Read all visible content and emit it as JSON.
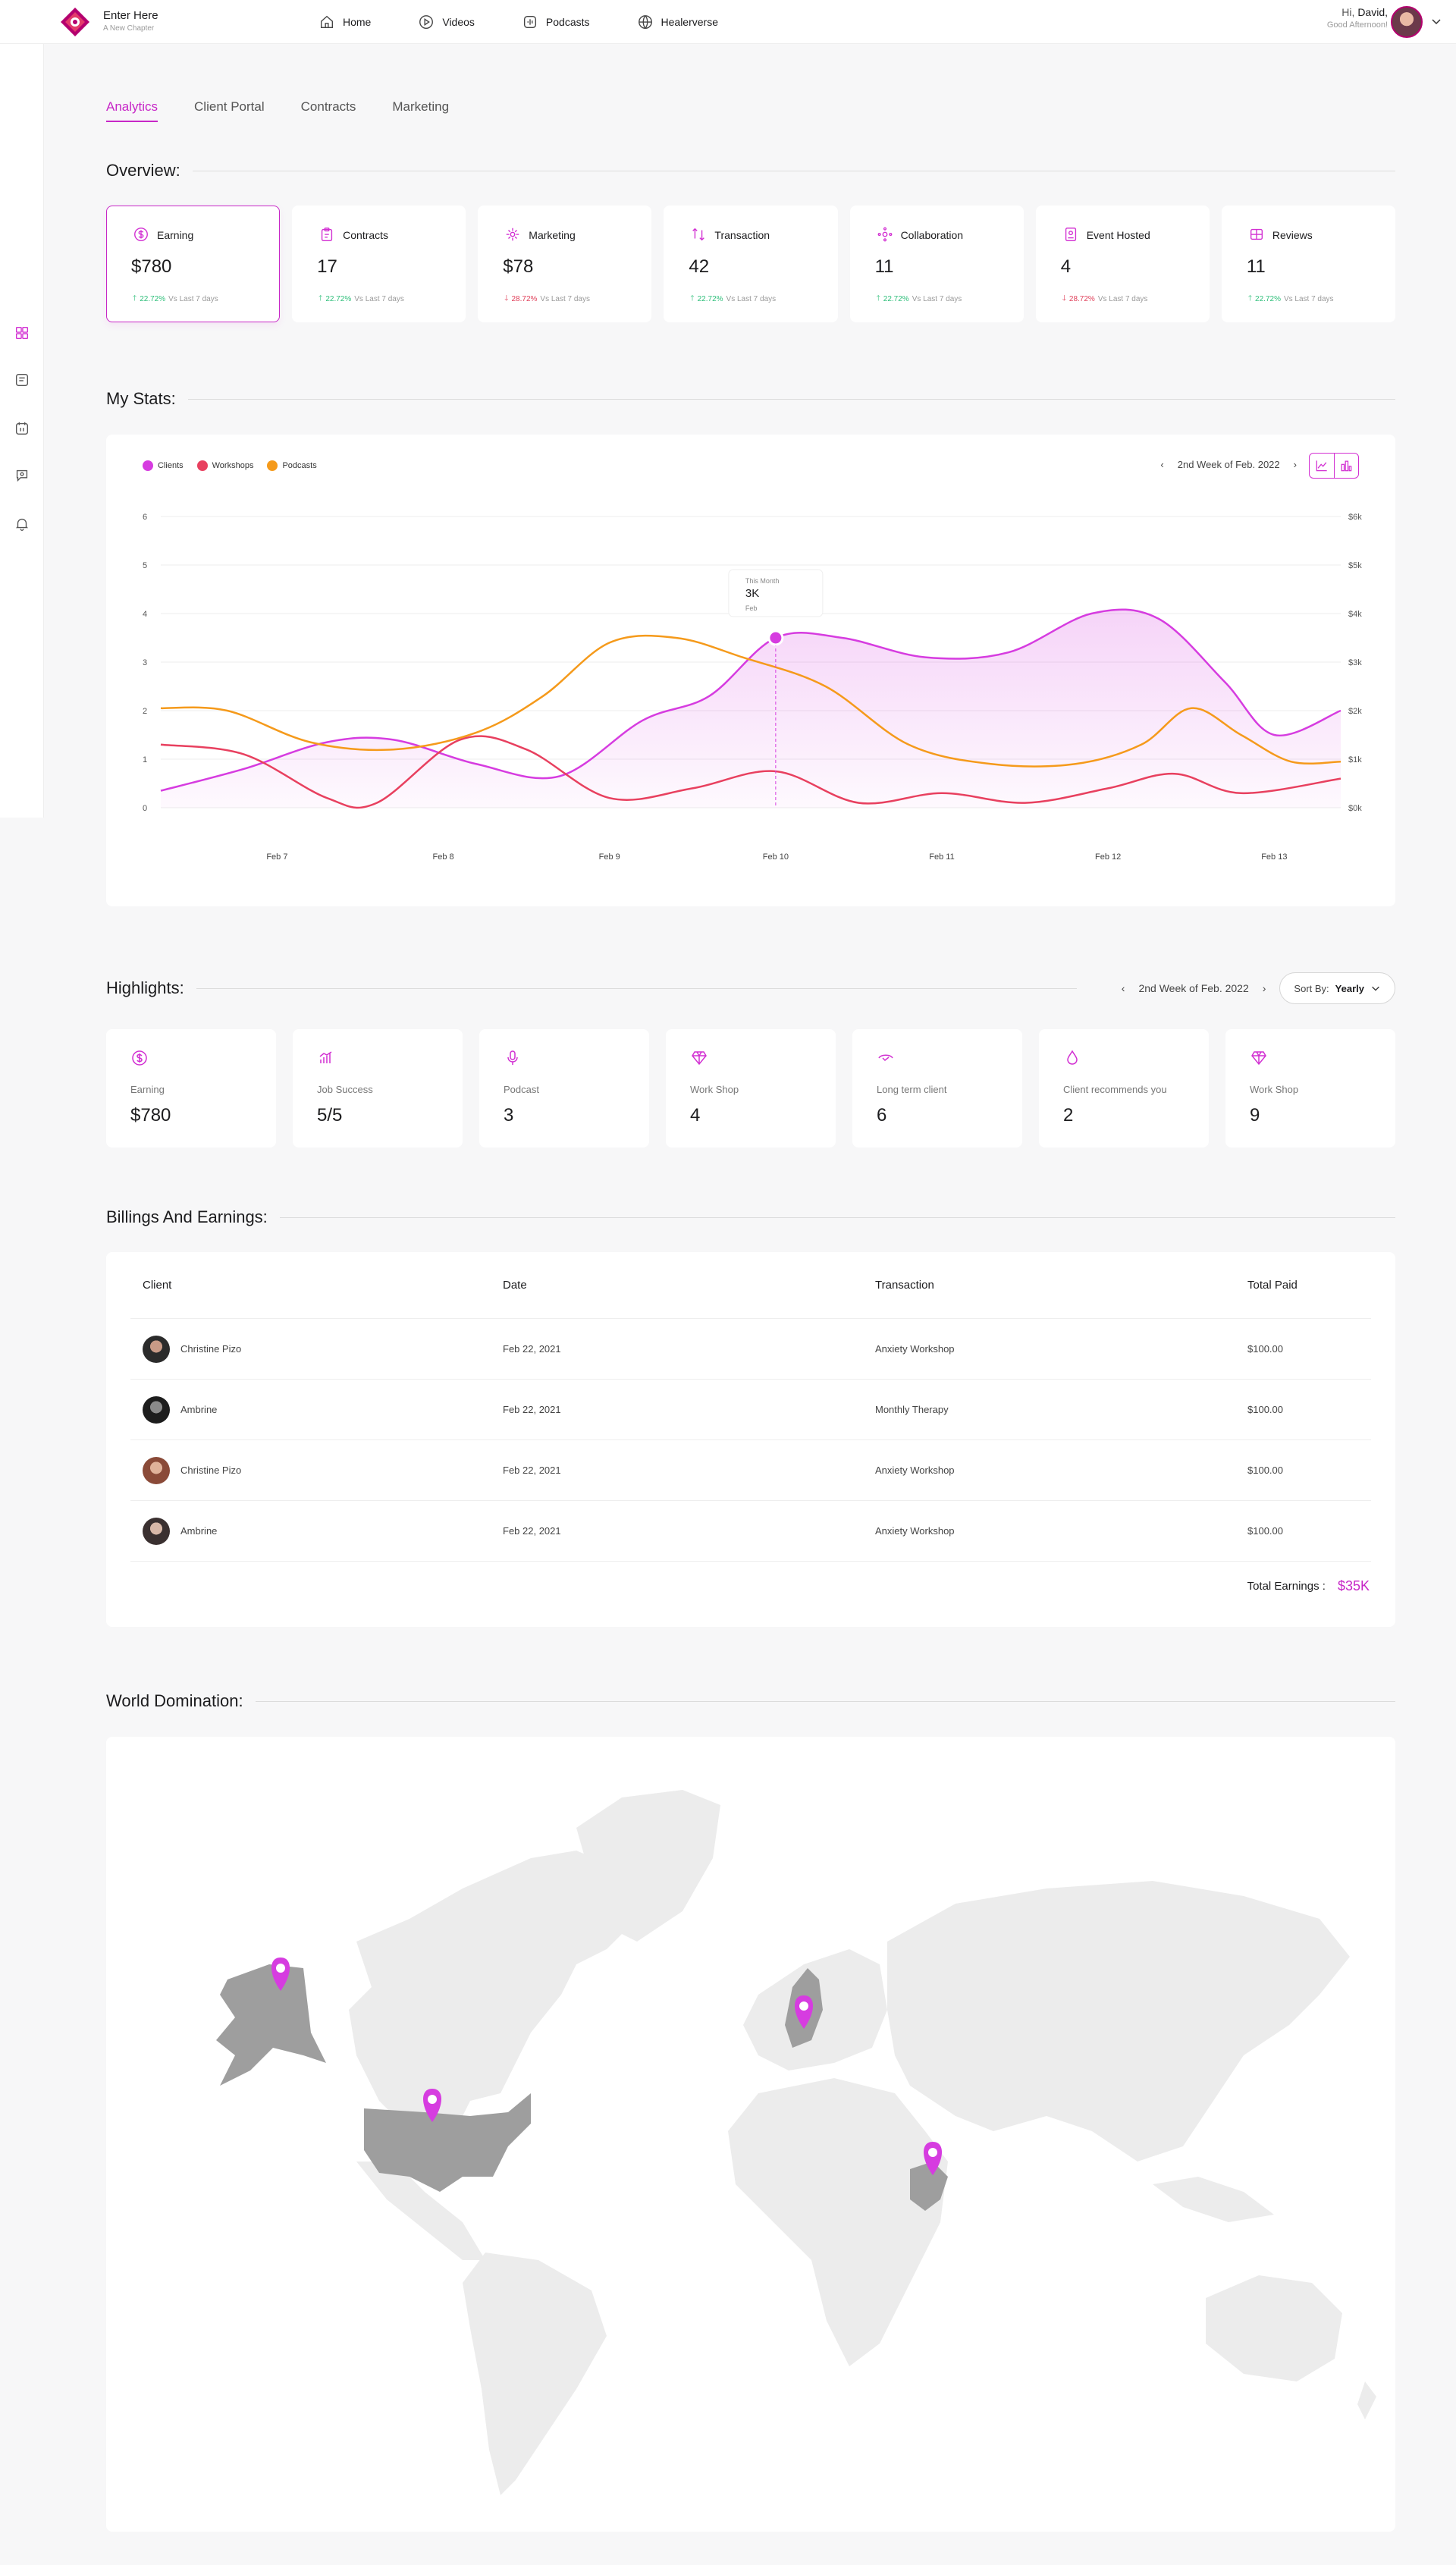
{
  "header": {
    "brand_title": "Enter Here",
    "brand_subtitle": "A New Chapter",
    "nav": [
      {
        "label": "Home",
        "icon": "home-icon"
      },
      {
        "label": "Videos",
        "icon": "play-icon"
      },
      {
        "label": "Podcasts",
        "icon": "podcast-icon"
      },
      {
        "label": "Healerverse",
        "icon": "globe-icon"
      }
    ],
    "user_hi": "Hi,",
    "user_name": "David,",
    "user_greeting": "Good Afternoon!"
  },
  "sidebar": [
    "dashboard-icon",
    "messages-icon",
    "calendar-icon",
    "chat-icon",
    "bell-icon"
  ],
  "tabs": [
    "Analytics",
    "Client Portal",
    "Contracts",
    "Marketing"
  ],
  "overview": {
    "title": "Overview:",
    "cards": [
      {
        "label": "Earning",
        "value": "$780",
        "change": "22.72%",
        "direction": "up",
        "note": "Vs Last 7 days",
        "icon": "dollar-icon"
      },
      {
        "label": "Contracts",
        "value": "17",
        "change": "22.72%",
        "direction": "up",
        "note": "Vs Last 7 days",
        "icon": "clipboard-icon"
      },
      {
        "label": "Marketing",
        "value": "$78",
        "change": "28.72%",
        "direction": "down",
        "note": "Vs Last 7 days",
        "icon": "megaphone-icon"
      },
      {
        "label": "Transaction",
        "value": "42",
        "change": "22.72%",
        "direction": "up",
        "note": "Vs Last 7 days",
        "icon": "transfer-icon"
      },
      {
        "label": "Collaboration",
        "value": "11",
        "change": "22.72%",
        "direction": "up",
        "note": "Vs Last 7 days",
        "icon": "collaboration-icon"
      },
      {
        "label": "Event Hosted",
        "value": "4",
        "change": "28.72%",
        "direction": "down",
        "note": "Vs Last 7 days",
        "icon": "event-icon"
      },
      {
        "label": "Reviews",
        "value": "11",
        "change": "22.72%",
        "direction": "up",
        "note": "Vs Last 7 days",
        "icon": "reviews-icon"
      }
    ]
  },
  "stats": {
    "title": "My Stats:",
    "week_label": "2nd Week of Feb. 2022",
    "tooltip": {
      "label": "This Month",
      "value": "3K",
      "date": "Feb"
    }
  },
  "chart_data": {
    "type": "line",
    "categories": [
      "Feb 7",
      "Feb 8",
      "Feb 9",
      "Feb 10",
      "Feb 11",
      "Feb 12",
      "Feb 13"
    ],
    "y_left_ticks": [
      "0",
      "1",
      "2",
      "3",
      "4",
      "5",
      "6"
    ],
    "y_right_ticks": [
      "$0k",
      "$1k",
      "$2k",
      "$3k",
      "$4k",
      "$5k",
      "$6k"
    ],
    "ylim": [
      0,
      6
    ],
    "x_range": [
      6.3,
      13.4
    ],
    "grid": true,
    "legend": "top-left",
    "series": [
      {
        "name": "Clients",
        "color": "#d63ce0",
        "fill": true,
        "x": [
          6.3,
          6.8,
          7.3,
          7.7,
          8.2,
          8.7,
          9.2,
          9.6,
          10.0,
          10.4,
          10.9,
          11.4,
          11.9,
          12.3,
          12.7,
          13.0,
          13.4
        ],
        "y": [
          0.35,
          0.8,
          1.35,
          1.4,
          0.9,
          0.65,
          1.8,
          2.3,
          3.5,
          3.5,
          3.1,
          3.2,
          4.0,
          3.9,
          2.6,
          1.5,
          2.0
        ]
      },
      {
        "name": "Workshops",
        "color": "#e8405f",
        "fill": false,
        "x": [
          6.3,
          6.8,
          7.3,
          7.6,
          8.1,
          8.5,
          9.0,
          9.5,
          10.0,
          10.5,
          11.0,
          11.5,
          12.0,
          12.4,
          12.8,
          13.4
        ],
        "y": [
          1.3,
          1.1,
          0.2,
          0.1,
          1.4,
          1.2,
          0.2,
          0.4,
          0.75,
          0.1,
          0.3,
          0.1,
          0.4,
          0.7,
          0.3,
          0.6
        ]
      },
      {
        "name": "Podcasts",
        "color": "#f59a1b",
        "fill": false,
        "x": [
          6.3,
          6.7,
          7.2,
          7.7,
          8.2,
          8.6,
          9.0,
          9.4,
          9.8,
          10.3,
          10.8,
          11.3,
          11.8,
          12.2,
          12.5,
          12.8,
          13.1,
          13.4
        ],
        "y": [
          2.05,
          2.0,
          1.35,
          1.2,
          1.55,
          2.3,
          3.4,
          3.5,
          3.1,
          2.5,
          1.3,
          0.9,
          0.9,
          1.3,
          2.05,
          1.5,
          0.95,
          0.95
        ]
      }
    ]
  },
  "highlights": {
    "title": "Highlights:",
    "week_label": "2nd Week of Feb. 2022",
    "sort_prefix": "Sort By:",
    "sort_value": "Yearly",
    "cards": [
      {
        "label": "Earning",
        "value": "$780",
        "icon": "dollar-icon"
      },
      {
        "label": "Job Success",
        "value": "5/5",
        "icon": "chart-icon"
      },
      {
        "label": "Podcast",
        "value": "3",
        "icon": "microphone-icon"
      },
      {
        "label": "Work Shop",
        "value": "4",
        "icon": "diamond-icon"
      },
      {
        "label": "Long term client",
        "value": "6",
        "icon": "handshake-icon"
      },
      {
        "label": "Client recommends you",
        "value": "2",
        "icon": "drop-icon"
      },
      {
        "label": "Work Shop",
        "value": "9",
        "icon": "diamond-icon"
      }
    ]
  },
  "billing": {
    "title": "Billings And Earnings:",
    "columns": [
      "Client",
      "Date",
      "Transaction",
      "Total Paid"
    ],
    "rows": [
      {
        "client": "Christine Pizo",
        "date": "Feb 22, 2021",
        "transaction": "Anxiety Workshop",
        "paid": "$100.00"
      },
      {
        "client": "Ambrine",
        "date": "Feb 22, 2021",
        "transaction": "Monthly Therapy",
        "paid": "$100.00"
      },
      {
        "client": "Christine Pizo",
        "date": "Feb 22, 2021",
        "transaction": "Anxiety Workshop",
        "paid": "$100.00"
      },
      {
        "client": "Ambrine",
        "date": "Feb 22, 2021",
        "transaction": "Anxiety Workshop",
        "paid": "$100.00"
      }
    ],
    "total_label": "Total Earnings :",
    "total_value": "$35K"
  },
  "world": {
    "title": "World Domination:",
    "highlighted_regions": [
      "Alaska",
      "United States",
      "Scandinavia",
      "Pakistan"
    ],
    "accent": "#d63ce0"
  }
}
